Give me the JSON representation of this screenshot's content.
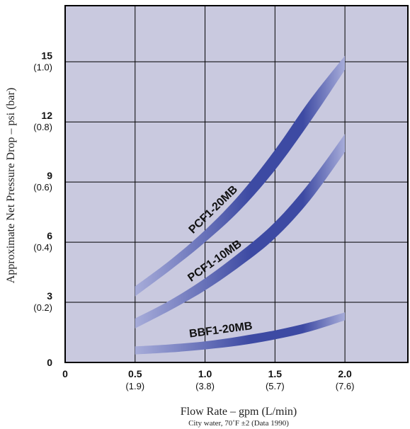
{
  "chart_data": {
    "type": "area",
    "xlabel": "Flow Rate – gpm (L/min)",
    "ylabel": "Approximate Net Pressure Drop – psi (bar)",
    "note": "City water, 70˚F ±2  (Data 1990)",
    "xlim": [
      0,
      2.45
    ],
    "ylim": [
      0,
      17.8
    ],
    "x_ticks": [
      {
        "value": 0,
        "label": "0",
        "sublabel": ""
      },
      {
        "value": 0.5,
        "label": "0.5",
        "sublabel": "(1.9)"
      },
      {
        "value": 1.0,
        "label": "1.0",
        "sublabel": "(3.8)"
      },
      {
        "value": 1.5,
        "label": "1.5",
        "sublabel": "(5.7)"
      },
      {
        "value": 2.0,
        "label": "2.0",
        "sublabel": "(7.6)"
      }
    ],
    "y_ticks": [
      {
        "value": 0,
        "label": "0",
        "sublabel": ""
      },
      {
        "value": 3,
        "label": "3",
        "sublabel": "(0.2)"
      },
      {
        "value": 6,
        "label": "6",
        "sublabel": "(0.4)"
      },
      {
        "value": 9,
        "label": "9",
        "sublabel": "(0.6)"
      },
      {
        "value": 12,
        "label": "12",
        "sublabel": "(0.8)"
      },
      {
        "value": 15,
        "label": "15",
        "sublabel": "(1.0)"
      }
    ],
    "grid": true,
    "plot_background": "#c9c9df",
    "band_colors": {
      "light": "#a7acd9",
      "dark": "#3d4aa3"
    },
    "series": [
      {
        "name": "PCF1-20MB",
        "x": [
          0.5,
          0.75,
          1.0,
          1.25,
          1.5,
          1.75,
          2.0
        ],
        "lower": [
          3.3,
          4.6,
          6.0,
          7.6,
          9.6,
          12.0,
          14.6
        ],
        "upper": [
          3.8,
          5.1,
          6.6,
          8.4,
          10.6,
          13.1,
          15.3
        ]
      },
      {
        "name": "PCF1-10MB",
        "x": [
          0.5,
          0.75,
          1.0,
          1.25,
          1.5,
          1.75,
          2.0
        ],
        "lower": [
          1.7,
          2.6,
          3.6,
          4.8,
          6.2,
          8.1,
          10.5
        ],
        "upper": [
          2.2,
          3.1,
          4.2,
          5.5,
          7.0,
          9.0,
          11.4
        ]
      },
      {
        "name": "BBF1-20MB",
        "x": [
          0.5,
          0.75,
          1.0,
          1.25,
          1.5,
          1.75,
          2.0
        ],
        "lower": [
          0.4,
          0.5,
          0.65,
          0.85,
          1.15,
          1.55,
          2.1
        ],
        "upper": [
          0.8,
          0.9,
          1.05,
          1.3,
          1.6,
          2.0,
          2.5
        ]
      }
    ]
  }
}
